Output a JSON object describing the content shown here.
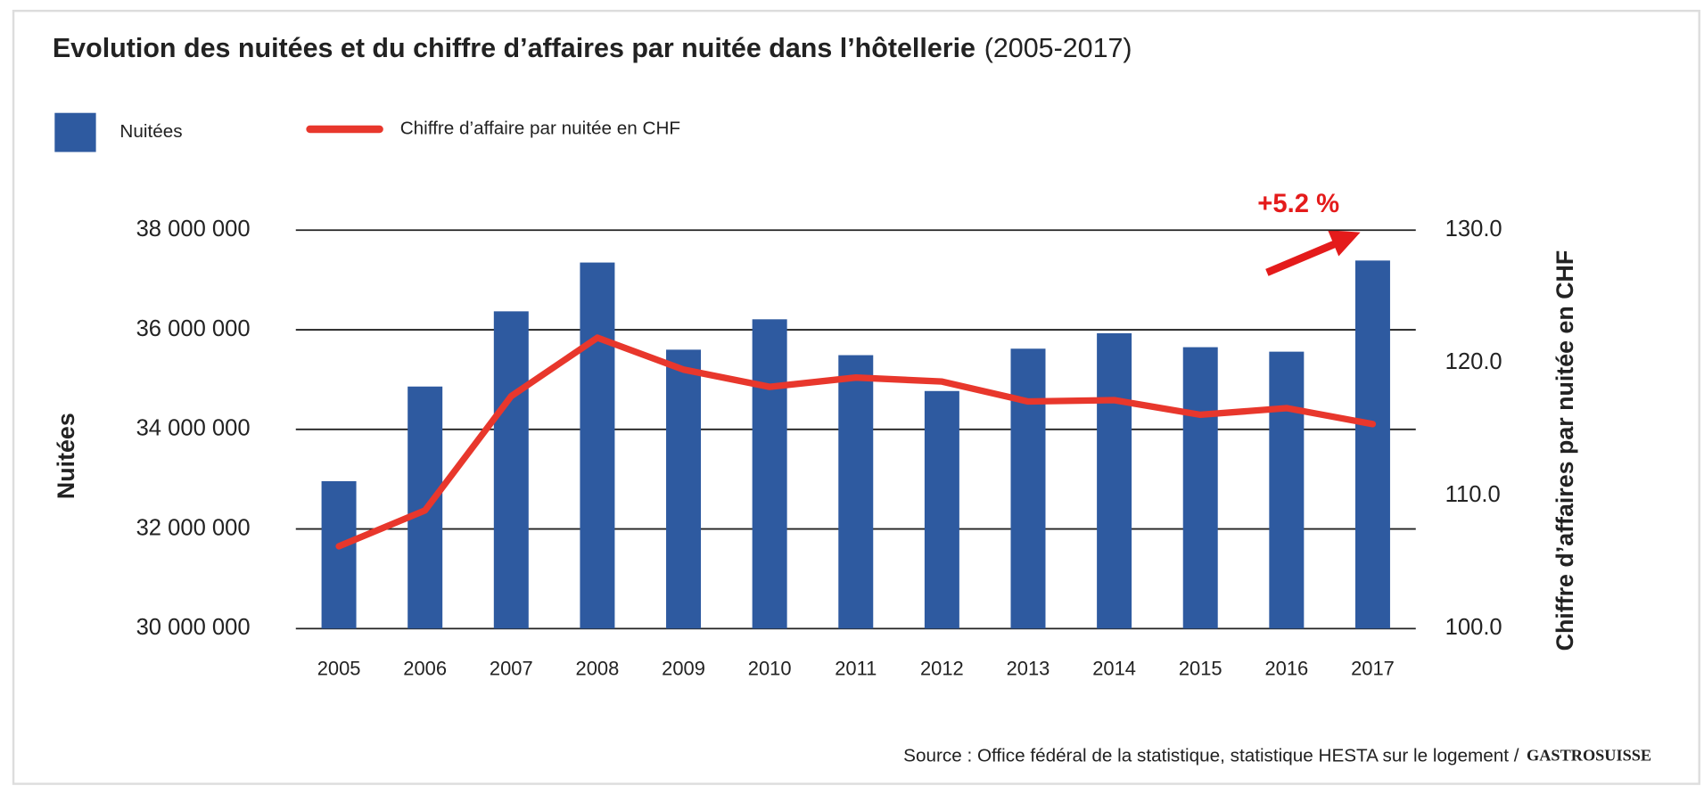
{
  "chart_data": {
    "type": "bar_line",
    "title": "Evolution des nuitées et du chiffre d’affaires par nuitée dans l’hôtellerie",
    "subtitle": "(2005-2017)",
    "categories": [
      "2005",
      "2006",
      "2007",
      "2008",
      "2009",
      "2010",
      "2011",
      "2012",
      "2013",
      "2014",
      "2015",
      "2016",
      "2017"
    ],
    "series": [
      {
        "name": "Nuitées",
        "type": "bar",
        "color": "#2e5aa0",
        "values": [
          32960000,
          34860000,
          36370000,
          37350000,
          35600000,
          36210000,
          35490000,
          34770000,
          35620000,
          35930000,
          35650000,
          35560000,
          37390000
        ]
      },
      {
        "name": "Chiffre d’affaire par nuitée en CHF",
        "type": "line",
        "axis": "y2",
        "color": "#e8372c",
        "values": [
          106.2,
          108.9,
          117.5,
          121.9,
          119.5,
          118.2,
          118.9,
          118.6,
          117.1,
          117.2,
          116.1,
          116.6,
          115.4
        ]
      }
    ],
    "ylabel": "Nuitées",
    "y2label": "Chiffre d’affaires par nuitée en CHF",
    "ylim": [
      30000000,
      38000000
    ],
    "yticks": [
      {
        "value": 30000000,
        "label": "30 000 000"
      },
      {
        "value": 32000000,
        "label": "32 000 000"
      },
      {
        "value": 34000000,
        "label": "34 000 000"
      },
      {
        "value": 36000000,
        "label": "36 000 000"
      },
      {
        "value": 38000000,
        "label": "38 000 000"
      }
    ],
    "y2lim": [
      100,
      130
    ],
    "y2ticks": [
      {
        "value": 100,
        "label": "100.0"
      },
      {
        "value": 110,
        "label": "110.0"
      },
      {
        "value": 120,
        "label": "120.0"
      },
      {
        "value": 130,
        "label": "130.0"
      }
    ],
    "grid": true,
    "legend": "top-left",
    "annotation": "+5.2 %",
    "source": "Source : Office fédéral de la statistique, statistique HESTA sur le logement /",
    "logo": "GASTROSUISSE"
  }
}
